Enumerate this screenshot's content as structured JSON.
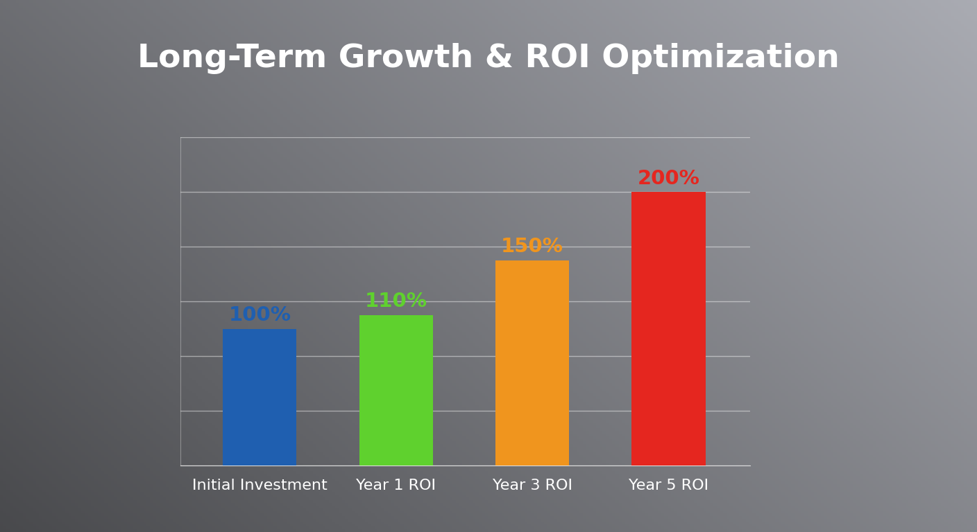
{
  "chart_data": {
    "type": "bar",
    "title": "Long-Term Growth & ROI Optimization",
    "categories": [
      "Initial Investment",
      "Year 1 ROI",
      "Year 3 ROI",
      "Year 5 ROI"
    ],
    "values": [
      100,
      110,
      150,
      200
    ],
    "value_labels": [
      "100%",
      "110%",
      "150%",
      "200%"
    ],
    "colors": [
      "#1f5fb0",
      "#5fd12e",
      "#f0951e",
      "#e5261f"
    ],
    "ylim": [
      0,
      240
    ],
    "yticks": [
      0,
      40,
      80,
      120,
      160,
      200,
      240
    ],
    "grid": true,
    "data_labels": true,
    "tick_labels": "x"
  }
}
